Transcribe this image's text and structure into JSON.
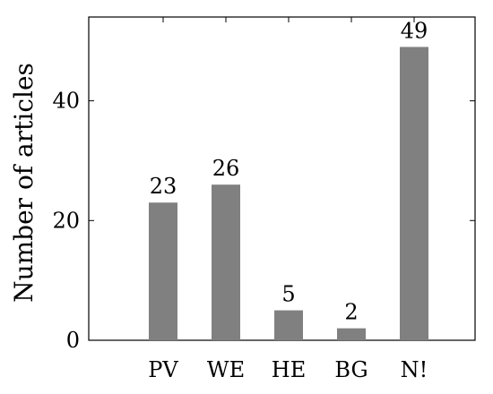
{
  "chart_data": {
    "type": "bar",
    "categories": [
      "PV",
      "WE",
      "HE",
      "BG",
      "N!"
    ],
    "values": [
      23,
      26,
      5,
      2,
      49
    ],
    "data_labels": [
      "23",
      "26",
      "5",
      "2",
      "49"
    ],
    "title": "",
    "xlabel": "",
    "ylabel": "Number of articles",
    "ylim": [
      0,
      54
    ],
    "yticks": [
      0,
      20,
      40
    ],
    "ytick_labels": [
      "0",
      "20",
      "40"
    ],
    "grid": false,
    "legend": "none",
    "bar_color": "#808080"
  }
}
